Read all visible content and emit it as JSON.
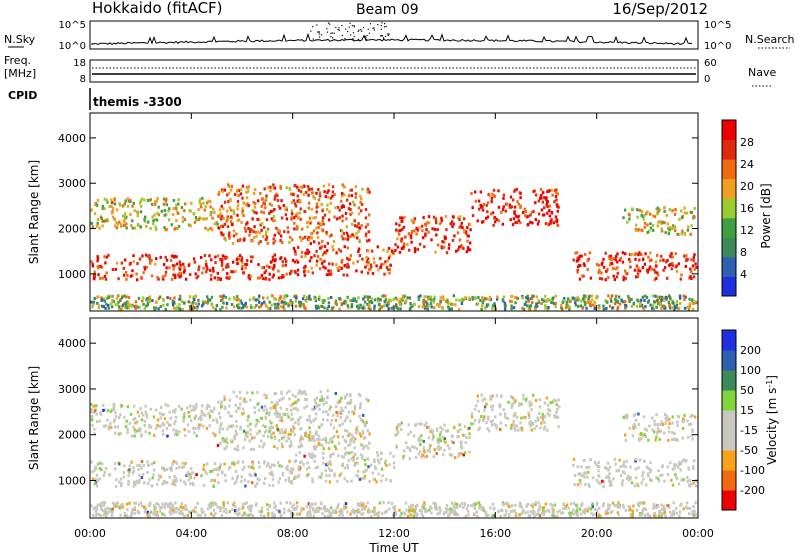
{
  "header": {
    "title": "Hokkaido (fitACF)",
    "beam": "Beam 09",
    "date": "16/Sep/2012"
  },
  "noise_panel": {
    "left_label": "N.Sky",
    "left_ticks": [
      "10^5",
      "10^0"
    ],
    "right_ticks": [
      "10^5",
      "10^0"
    ],
    "right_label": "N.Search"
  },
  "freq_panel": {
    "left_label_1": "Freq.",
    "left_label_2": "[MHz]",
    "left_ticks": [
      "18",
      "8"
    ],
    "right_ticks": [
      "60",
      "0"
    ],
    "right_label": "Nave"
  },
  "cpid_panel": {
    "label": "CPID",
    "value": "themis -3300"
  },
  "colors": {
    "power_scale": [
      "#1f2fe0",
      "#2f5fb0",
      "#3c8a5a",
      "#3fa040",
      "#9acb30",
      "#f0a020",
      "#f26a10",
      "#e02a10",
      "#ee0000"
    ],
    "velocity_scale": [
      "#ee0000",
      "#f26a10",
      "#f7a21a",
      "#c8c8c0",
      "#c8c8c0",
      "#7fd63a",
      "#3c8a5a",
      "#2f5fb0",
      "#1f2fe0"
    ],
    "gray": "#c8c8c0"
  },
  "chart_data": [
    {
      "type": "heatmap",
      "name": "power",
      "ylabel": "Slant Range [km]",
      "yticks": [
        "1000",
        "2000",
        "3000",
        "4000"
      ],
      "ylim": [
        180,
        4550
      ],
      "xlim": [
        0,
        24
      ],
      "colorbar_label": "Power [dB]",
      "colorbar_ticks": [
        "4",
        "8",
        "12",
        "16",
        "20",
        "24",
        "28"
      ],
      "colorbar_range": [
        0,
        32
      ],
      "bands": [
        {
          "t": [
            0,
            8
          ],
          "r": [
            900,
            1450
          ],
          "v": 28
        },
        {
          "t": [
            8,
            12
          ],
          "r": [
            1000,
            1650
          ],
          "v": 26
        },
        {
          "t": [
            12,
            15
          ],
          "r": [
            1500,
            2300
          ],
          "v": 27
        },
        {
          "t": [
            15,
            18.5
          ],
          "r": [
            2100,
            2900
          ],
          "v": 28
        },
        {
          "t": [
            0,
            5
          ],
          "r": [
            2000,
            2700
          ],
          "v": 18
        },
        {
          "t": [
            5,
            11
          ],
          "r": [
            1700,
            3000
          ],
          "v": 24
        },
        {
          "t": [
            19,
            24
          ],
          "r": [
            900,
            1500
          ],
          "v": 28
        },
        {
          "t": [
            21,
            24
          ],
          "r": [
            1900,
            2500
          ],
          "v": 18
        }
      ]
    },
    {
      "type": "heatmap",
      "name": "velocity",
      "ylabel": "Slant Range [km]",
      "yticks": [
        "1000",
        "2000",
        "3000",
        "4000"
      ],
      "ylim": [
        180,
        4550
      ],
      "xlim": [
        0,
        24
      ],
      "colorbar_label": "Velocity [m s^-1]",
      "colorbar_ticks": [
        "-200",
        "-100",
        "-50",
        "-15",
        "15",
        "50",
        "100",
        "200"
      ],
      "colorbar_range": [
        -250,
        250
      ],
      "xlabel": "Time UT",
      "xticks": [
        "00:00",
        "04:00",
        "08:00",
        "12:00",
        "16:00",
        "20:00",
        "00:00"
      ]
    }
  ]
}
